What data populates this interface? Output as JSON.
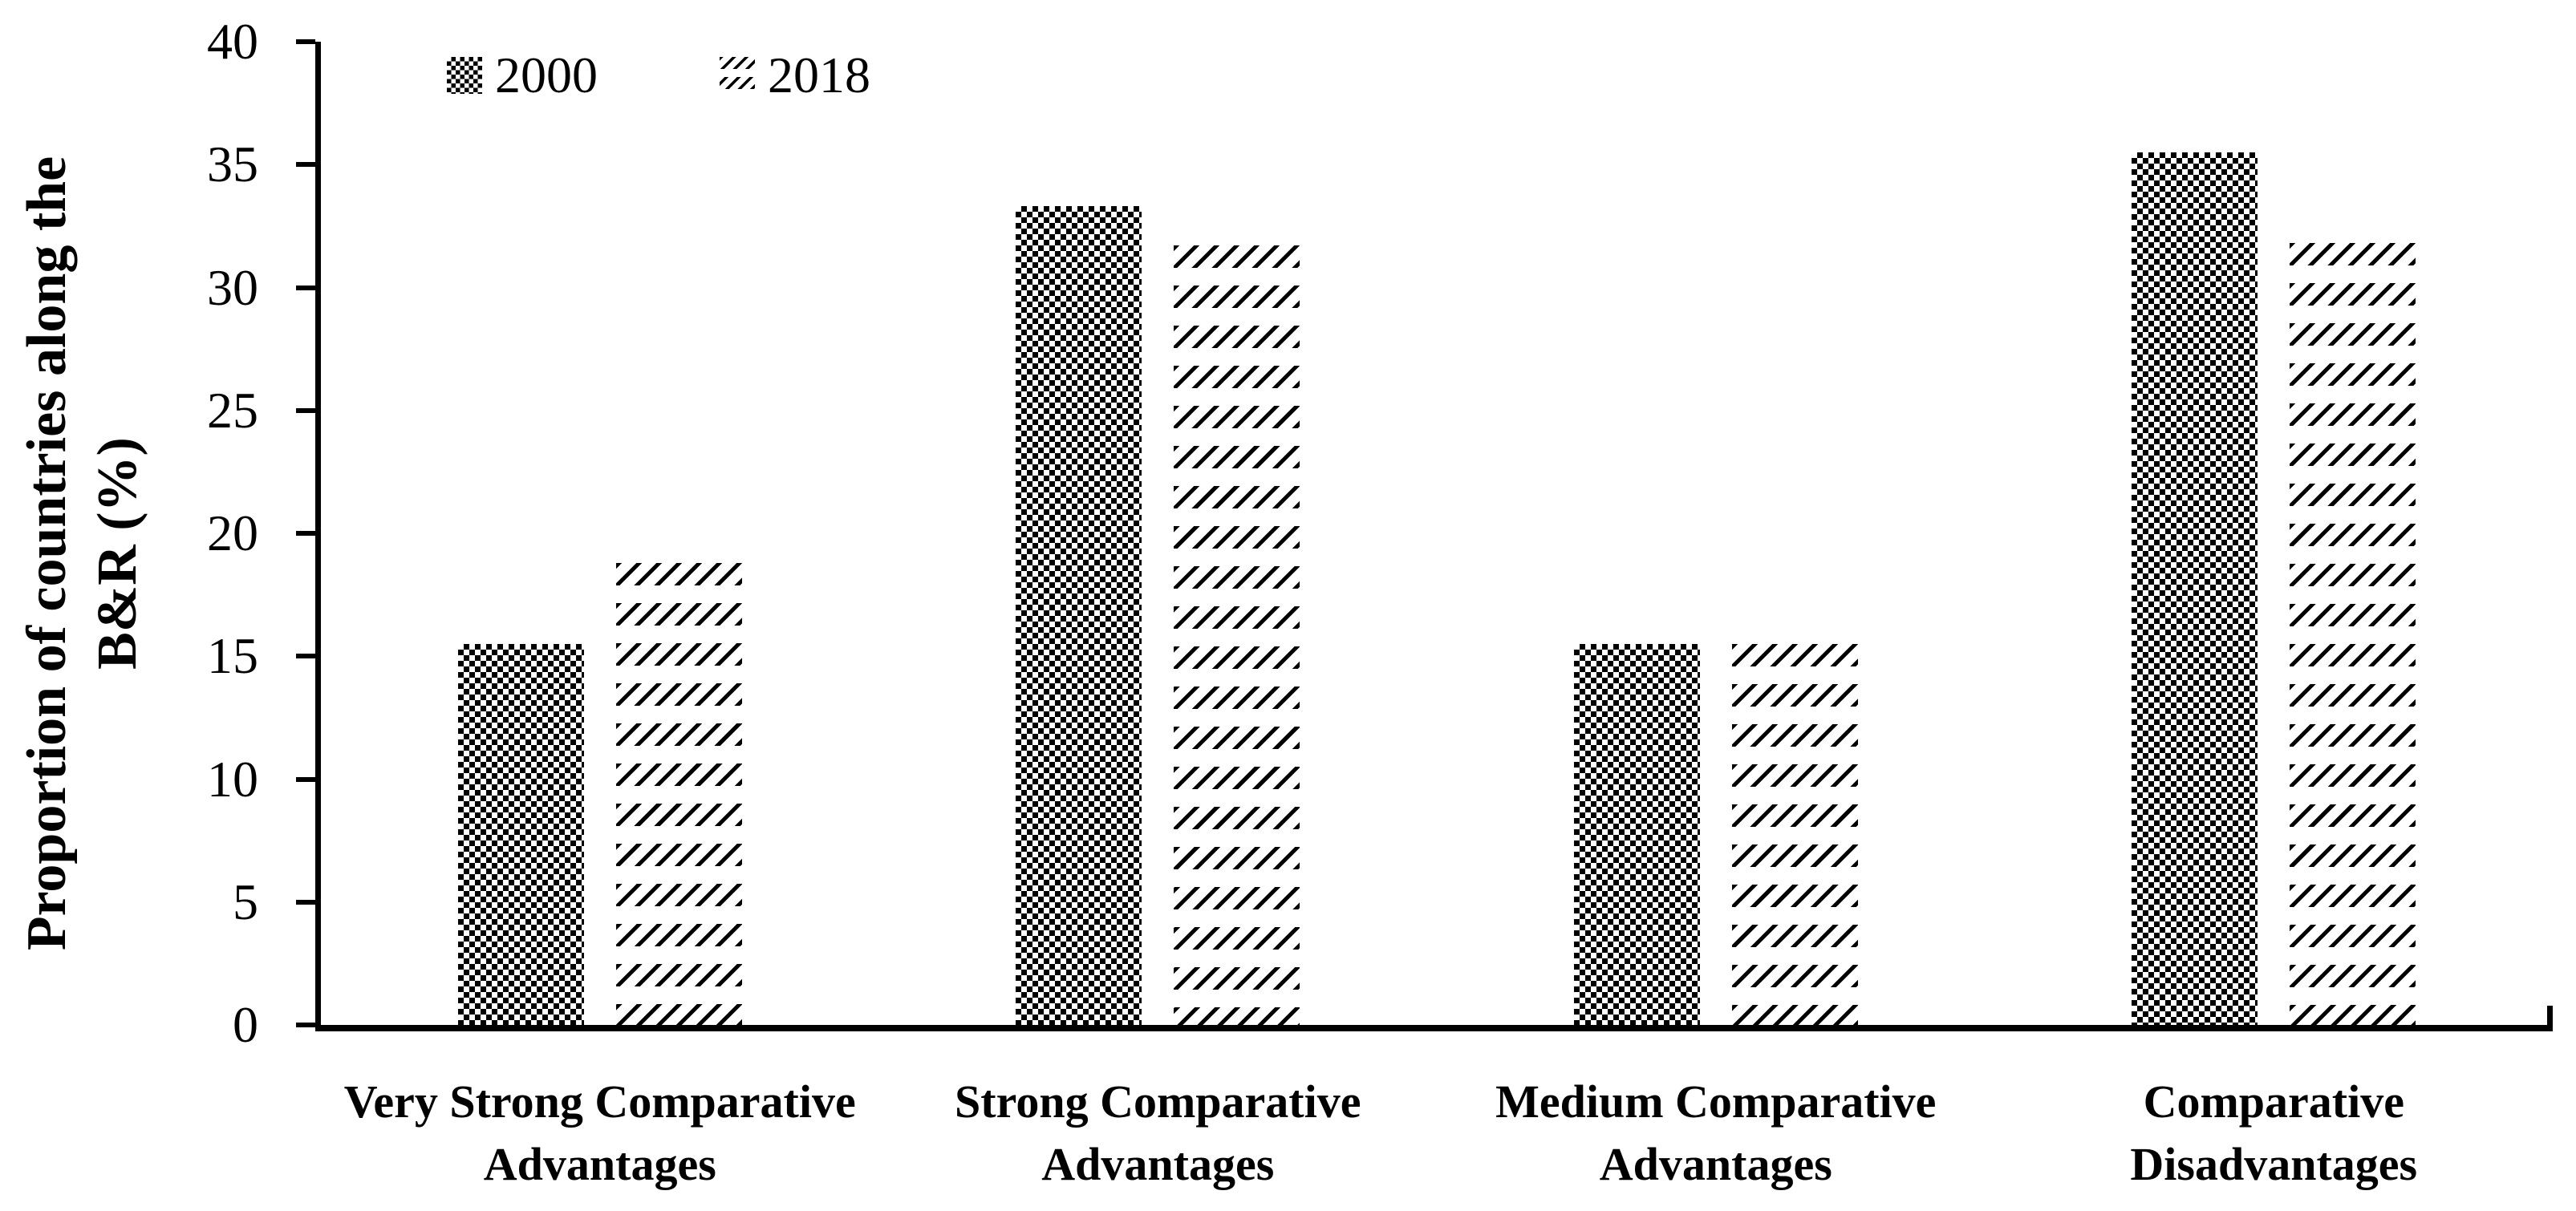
{
  "figure": {
    "background": "#ffffff",
    "ink": "#000000"
  },
  "y_axis": {
    "title_line1": "Proportion of countries along the",
    "title_line2": "B&R (%)",
    "tick_labels": [
      "0",
      "5",
      "10",
      "15",
      "20",
      "25",
      "30",
      "35",
      "40"
    ],
    "min": 0,
    "max": 40
  },
  "legend": {
    "items": [
      {
        "label": "2000",
        "pattern": "checkerboard"
      },
      {
        "label": "2018",
        "pattern": "diagonal-dashes"
      }
    ]
  },
  "chart_data": {
    "type": "bar",
    "title": "",
    "xlabel": "",
    "ylabel": "Proportion of countries along the B&R (%)",
    "ylim": [
      0,
      40
    ],
    "y_tick_step": 5,
    "grid": false,
    "legend_position": "top-left-inside",
    "bar_colors": {
      "series_2000": "black checkerboard pattern",
      "series_2018": "black diagonal-dash pattern"
    },
    "categories": [
      "Very Strong Comparative Advantages",
      "Strong Comparative Advantages",
      "Medium Comparative Advantages",
      "Comparative Disadvantages"
    ],
    "series": [
      {
        "name": "2000",
        "pattern": "checkerboard",
        "values": [
          15.5,
          33.3,
          15.5,
          35.5
        ]
      },
      {
        "name": "2018",
        "pattern": "diagonal-dashes",
        "values": [
          18.8,
          31.7,
          15.5,
          31.8
        ]
      }
    ]
  }
}
